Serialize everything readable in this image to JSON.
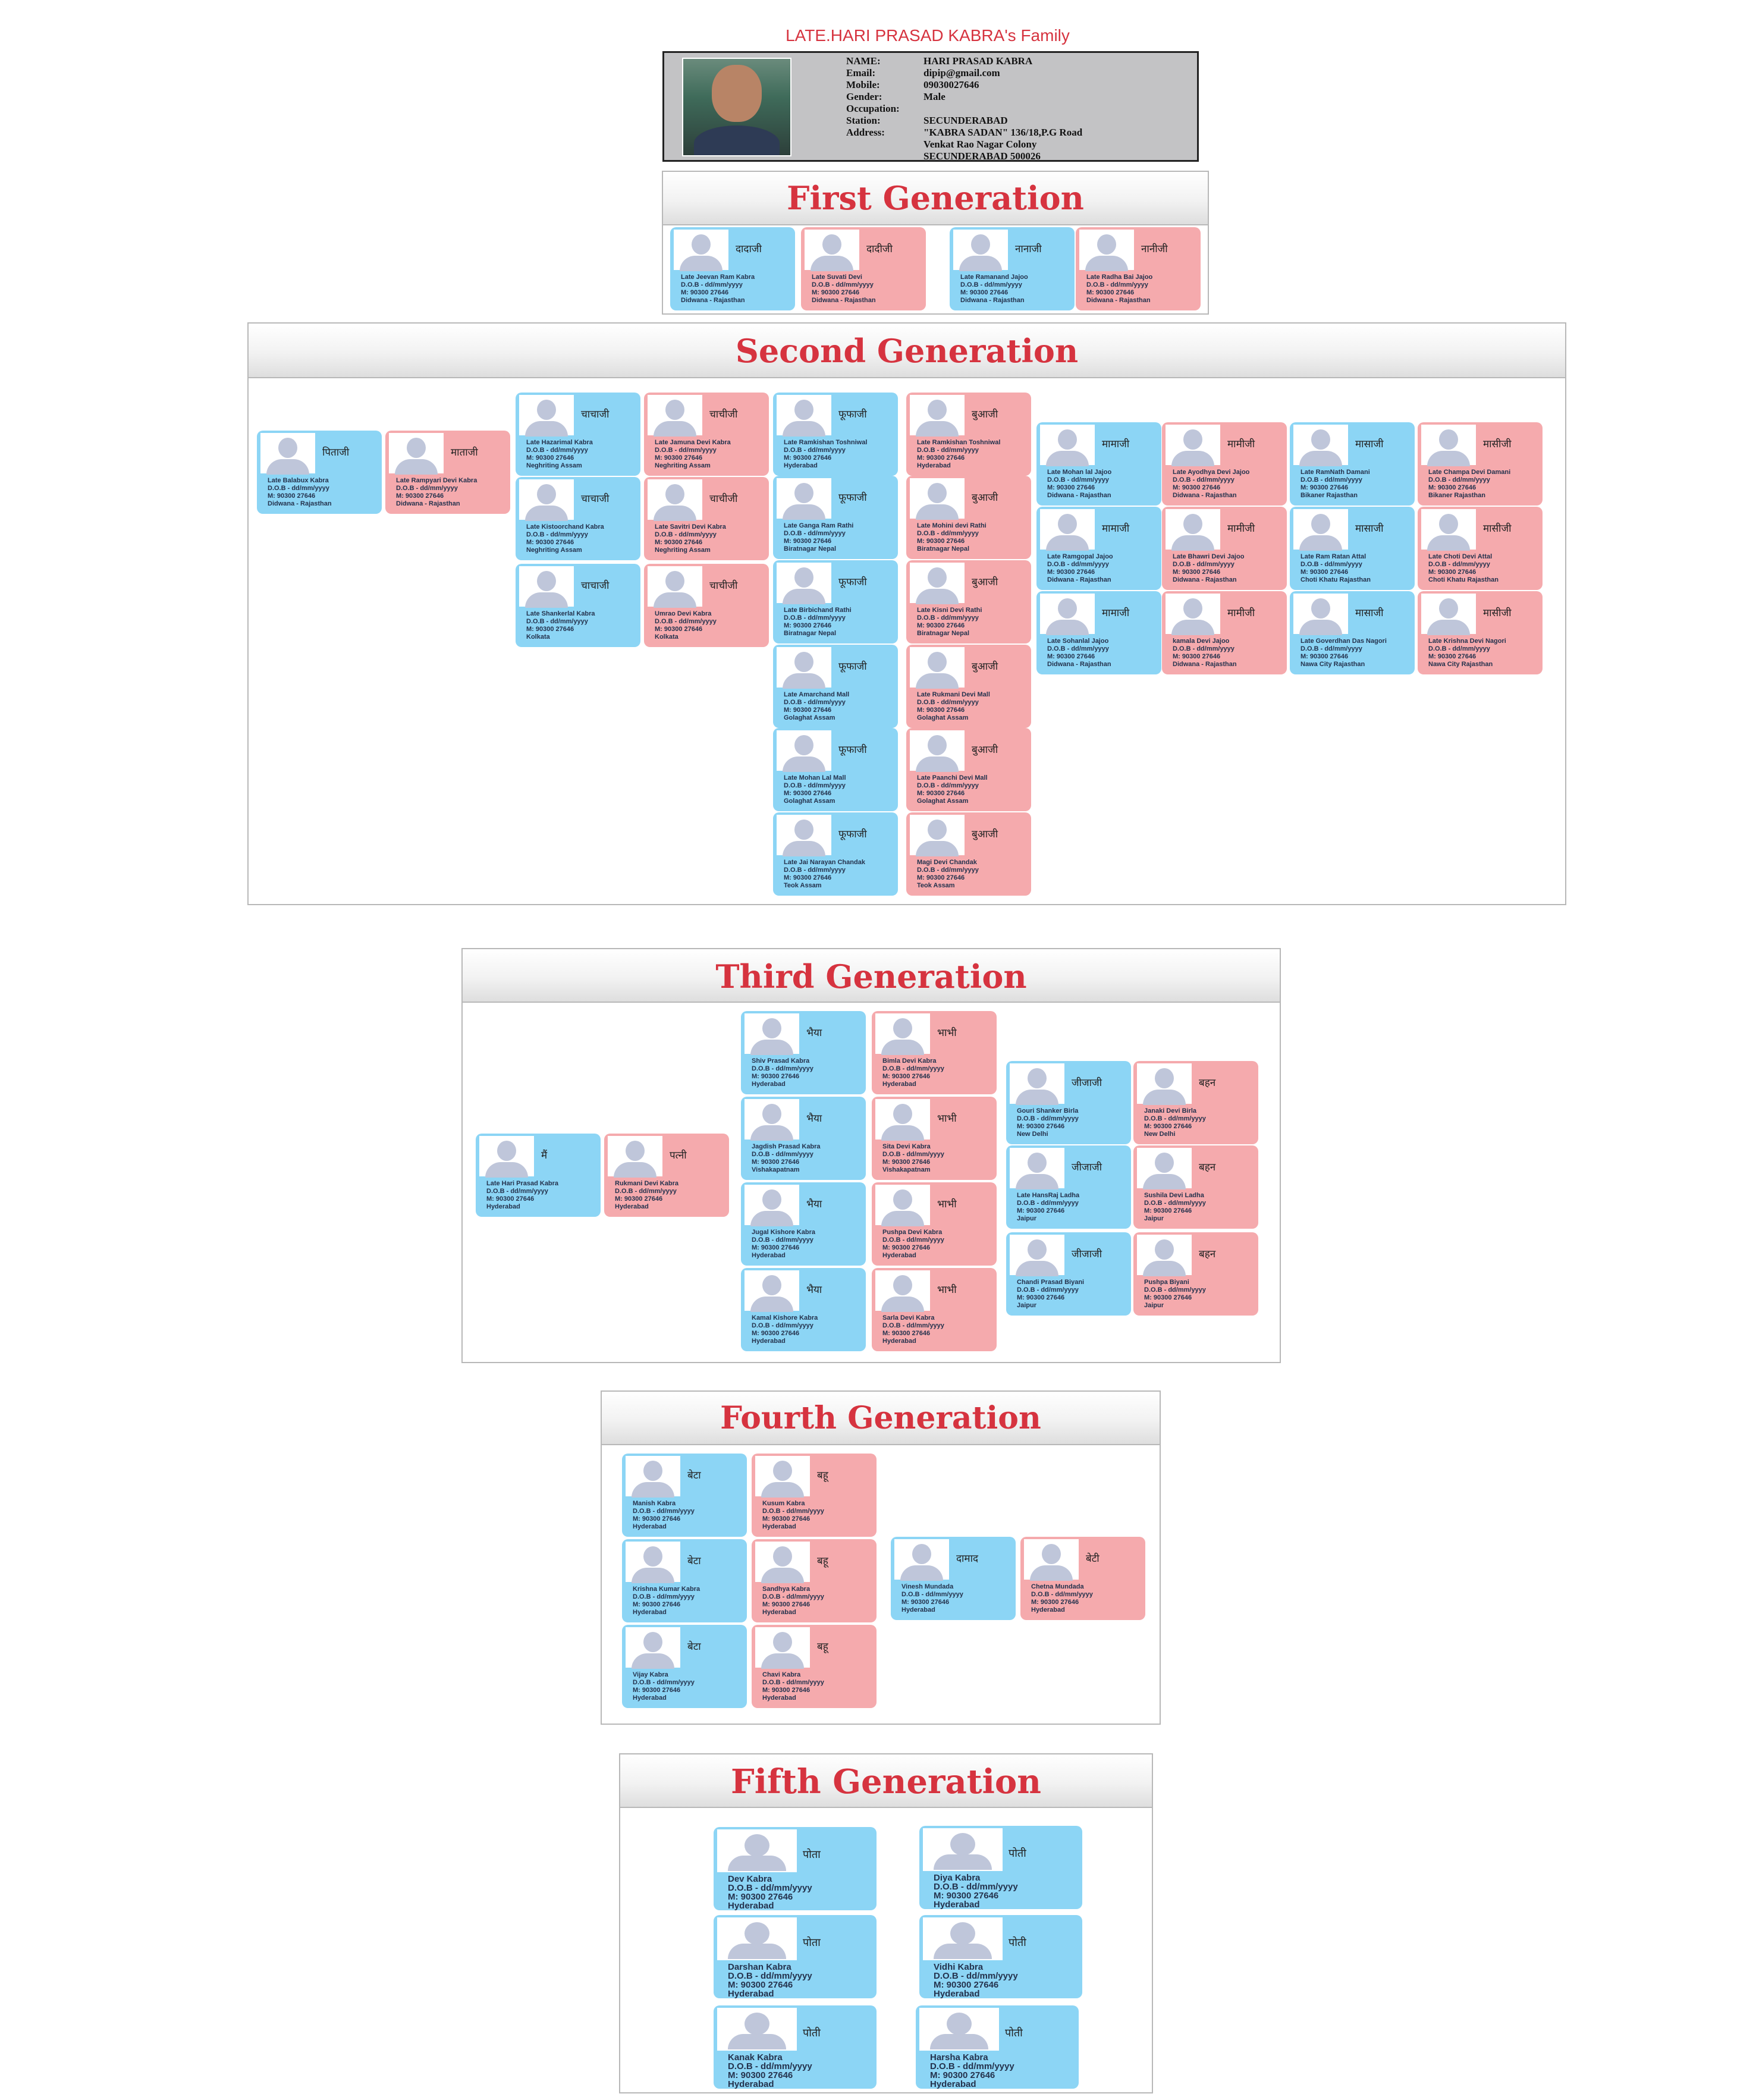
{
  "title": "LATE.HARI PRASAD KABRA's Family",
  "profile": {
    "fields": [
      {
        "label": "NAME:",
        "value": "HARI PRASAD KABRA"
      },
      {
        "label": "Email:",
        "value": "dipip@gmail.com"
      },
      {
        "label": "Mobile:",
        "value": "09030027646"
      },
      {
        "label": "Gender:",
        "value": "Male"
      },
      {
        "label": "Occupation:",
        "value": ""
      },
      {
        "label": "Station:",
        "value": "SECUNDERABAD"
      },
      {
        "label": "Address:",
        "value": "\"KABRA SADAN\" 136/18,P.G Road"
      },
      {
        "label": "",
        "value": "Venkat Rao Nagar Colony"
      },
      {
        "label": "",
        "value": "SECUNDERABAD 500026"
      }
    ]
  },
  "colors": {
    "male": "#8cd5f5",
    "female": "#f5aaad",
    "heading": "#d6333f"
  },
  "generations": [
    {
      "title": "First Generation",
      "members": [
        {
          "rel": "दादाजी",
          "name": "Late Jeevan Ram Kabra",
          "dob": "D.O.B - dd/mm/yyyy",
          "mobile": "M: 90300 27646",
          "place": "Didwana - Rajasthan",
          "gender": "m"
        },
        {
          "rel": "दादीजी",
          "name": "Late Suvati Devi",
          "dob": "D.O.B - dd/mm/yyyy",
          "mobile": "M: 90300 27646",
          "place": "Didwana - Rajasthan",
          "gender": "f"
        },
        {
          "rel": "नानाजी",
          "name": "Late Ramanand Jajoo",
          "dob": "D.O.B - dd/mm/yyyy",
          "mobile": "M: 90300 27646",
          "place": "Didwana - Rajasthan",
          "gender": "m"
        },
        {
          "rel": "नानीजी",
          "name": "Late Radha Bai Jajoo",
          "dob": "D.O.B - dd/mm/yyyy",
          "mobile": "M: 90300 27646",
          "place": "Didwana - Rajasthan",
          "gender": "f"
        }
      ]
    },
    {
      "title": "Second Generation",
      "members": [
        {
          "rel": "पिताजी",
          "name": "Late Balabux Kabra",
          "dob": "D.O.B - dd/mm/yyyy",
          "mobile": "M: 90300 27646",
          "place": "Didwana - Rajasthan",
          "gender": "m"
        },
        {
          "rel": "माताजी",
          "name": "Late Rampyari Devi Kabra",
          "dob": "D.O.B - dd/mm/yyyy",
          "mobile": "M: 90300 27646",
          "place": "Didwana - Rajasthan",
          "gender": "f"
        },
        {
          "rel": "चाचाजी",
          "name": "Late Hazarimal Kabra",
          "dob": "D.O.B - dd/mm/yyyy",
          "mobile": "M: 90300 27646",
          "place": "Neghriting Assam",
          "gender": "m"
        },
        {
          "rel": "चाचीजी",
          "name": "Late Jamuna Devi Kabra",
          "dob": "D.O.B - dd/mm/yyyy",
          "mobile": "M: 90300 27646",
          "place": "Neghriting Assam",
          "gender": "f"
        },
        {
          "rel": "चाचाजी",
          "name": "Late Kistoorchand Kabra",
          "dob": "D.O.B - dd/mm/yyyy",
          "mobile": "M: 90300 27646",
          "place": "Neghriting Assam",
          "gender": "m"
        },
        {
          "rel": "चाचीजी",
          "name": "Late Savitri Devi Kabra",
          "dob": "D.O.B - dd/mm/yyyy",
          "mobile": "M: 90300 27646",
          "place": "Neghriting Assam",
          "gender": "f"
        },
        {
          "rel": "चाचाजी",
          "name": "Late Shankerlal Kabra",
          "dob": "D.O.B - dd/mm/yyyy",
          "mobile": "M: 90300 27646",
          "place": "Kolkata",
          "gender": "m"
        },
        {
          "rel": "चाचीजी",
          "name": "Umrao Devi Kabra",
          "dob": "D.O.B - dd/mm/yyyy",
          "mobile": "M: 90300 27646",
          "place": "Kolkata",
          "gender": "f"
        },
        {
          "rel": "फूफाजी",
          "name": "Late Ramkishan Toshniwal",
          "dob": "D.O.B - dd/mm/yyyy",
          "mobile": "M: 90300 27646",
          "place": "Hyderabad",
          "gender": "m"
        },
        {
          "rel": "बुआजी",
          "name": "Late Ramkishan Toshniwal",
          "dob": "D.O.B - dd/mm/yyyy",
          "mobile": "M: 90300 27646",
          "place": "Hyderabad",
          "gender": "f"
        },
        {
          "rel": "फूफाजी",
          "name": "Late Ganga Ram Rathi",
          "dob": "D.O.B - dd/mm/yyyy",
          "mobile": "M: 90300 27646",
          "place": "Biratnagar Nepal",
          "gender": "m"
        },
        {
          "rel": "बुआजी",
          "name": "Late Mohini devi Rathi",
          "dob": "D.O.B - dd/mm/yyyy",
          "mobile": "M: 90300 27646",
          "place": "Biratnagar Nepal",
          "gender": "f"
        },
        {
          "rel": "फूफाजी",
          "name": "Late Birbichand Rathi",
          "dob": "D.O.B - dd/mm/yyyy",
          "mobile": "M: 90300 27646",
          "place": "Biratnagar Nepal",
          "gender": "m"
        },
        {
          "rel": "बुआजी",
          "name": "Late Kisni Devi Rathi",
          "dob": "D.O.B - dd/mm/yyyy",
          "mobile": "M: 90300 27646",
          "place": "Biratnagar Nepal",
          "gender": "f"
        },
        {
          "rel": "फूफाजी",
          "name": "Late Amarchand Mall",
          "dob": "D.O.B - dd/mm/yyyy",
          "mobile": "M: 90300 27646",
          "place": "Golaghat Assam",
          "gender": "m"
        },
        {
          "rel": "बुआजी",
          "name": "Late Rukmani Devi Mall",
          "dob": "D.O.B - dd/mm/yyyy",
          "mobile": "M: 90300 27646",
          "place": "Golaghat Assam",
          "gender": "f"
        },
        {
          "rel": "फूफाजी",
          "name": "Late Mohan Lal Mall",
          "dob": "D.O.B - dd/mm/yyyy",
          "mobile": "M: 90300 27646",
          "place": "Golaghat Assam",
          "gender": "m"
        },
        {
          "rel": "बुआजी",
          "name": "Late Paanchi Devi Mall",
          "dob": "D.O.B - dd/mm/yyyy",
          "mobile": "M: 90300 27646",
          "place": "Golaghat Assam",
          "gender": "f"
        },
        {
          "rel": "फूफाजी",
          "name": "Late Jai Narayan Chandak",
          "dob": "D.O.B - dd/mm/yyyy",
          "mobile": "M: 90300 27646",
          "place": "Teok Assam",
          "gender": "m"
        },
        {
          "rel": "बुआजी",
          "name": "Magi Devi Chandak",
          "dob": "D.O.B - dd/mm/yyyy",
          "mobile": "M: 90300 27646",
          "place": "Teok Assam",
          "gender": "f"
        },
        {
          "rel": "मामाजी",
          "name": "Late Mohan lal Jajoo",
          "dob": "D.O.B - dd/mm/yyyy",
          "mobile": "M: 90300 27646",
          "place": "Didwana - Rajasthan",
          "gender": "m"
        },
        {
          "rel": "मामीजी",
          "name": "Late Ayodhya Devi Jajoo",
          "dob": "D.O.B - dd/mm/yyyy",
          "mobile": "M: 90300 27646",
          "place": "Didwana - Rajasthan",
          "gender": "f"
        },
        {
          "rel": "मासाजी",
          "name": "Late RamNath Damani",
          "dob": "D.O.B - dd/mm/yyyy",
          "mobile": "M: 90300 27646",
          "place": "Bikaner Rajasthan",
          "gender": "m"
        },
        {
          "rel": "मासीजी",
          "name": "Late Champa Devi Damani",
          "dob": "D.O.B - dd/mm/yyyy",
          "mobile": "M: 90300 27646",
          "place": "Bikaner Rajasthan",
          "gender": "f"
        },
        {
          "rel": "मामाजी",
          "name": "Late Ramgopal Jajoo",
          "dob": "D.O.B - dd/mm/yyyy",
          "mobile": "M: 90300 27646",
          "place": "Didwana - Rajasthan",
          "gender": "m"
        },
        {
          "rel": "मामीजी",
          "name": "Late Bhawri Devi Jajoo",
          "dob": "D.O.B - dd/mm/yyyy",
          "mobile": "M: 90300 27646",
          "place": "Didwana - Rajasthan",
          "gender": "f"
        },
        {
          "rel": "मासाजी",
          "name": "Late Ram Ratan Attal",
          "dob": "D.O.B - dd/mm/yyyy",
          "mobile": "M: 90300 27646",
          "place": "Choti Khatu Rajasthan",
          "gender": "m"
        },
        {
          "rel": "मासीजी",
          "name": "Late Choti Devi Attal",
          "dob": "D.O.B - dd/mm/yyyy",
          "mobile": "M: 90300 27646",
          "place": "Choti Khatu Rajasthan",
          "gender": "f"
        },
        {
          "rel": "मामाजी",
          "name": "Late Sohanlal Jajoo",
          "dob": "D.O.B - dd/mm/yyyy",
          "mobile": "M: 90300 27646",
          "place": "Didwana - Rajasthan",
          "gender": "m"
        },
        {
          "rel": "मामीजी",
          "name": "kamala Devi Jajoo",
          "dob": "D.O.B - dd/mm/yyyy",
          "mobile": "M: 90300 27646",
          "place": "Didwana - Rajasthan",
          "gender": "f"
        },
        {
          "rel": "मासाजी",
          "name": "Late Goverdhan Das Nagori",
          "dob": "D.O.B - dd/mm/yyyy",
          "mobile": "M: 90300 27646",
          "place": "Nawa City Rajasthan",
          "gender": "m"
        },
        {
          "rel": "मासीजी",
          "name": "Late Krishna Devi Nagori",
          "dob": "D.O.B - dd/mm/yyyy",
          "mobile": "M: 90300 27646",
          "place": "Nawa City Rajasthan",
          "gender": "f"
        }
      ]
    },
    {
      "title": "Third Generation",
      "members": [
        {
          "rel": "मैं",
          "name": "Late Hari Prasad Kabra",
          "dob": "D.O.B - dd/mm/yyyy",
          "mobile": "M: 90300 27646",
          "place": "Hyderabad",
          "gender": "m"
        },
        {
          "rel": "पत्नी",
          "name": "Rukmani Devi Kabra",
          "dob": "D.O.B - dd/mm/yyyy",
          "mobile": "M: 90300 27646",
          "place": "Hyderabad",
          "gender": "f"
        },
        {
          "rel": "भैया",
          "name": "Shiv Prasad Kabra",
          "dob": "D.O.B - dd/mm/yyyy",
          "mobile": "M: 90300 27646",
          "place": "Hyderabad",
          "gender": "m"
        },
        {
          "rel": "भाभी",
          "name": "Bimla Devi Kabra",
          "dob": "D.O.B - dd/mm/yyyy",
          "mobile": "M: 90300 27646",
          "place": "Hyderabad",
          "gender": "f"
        },
        {
          "rel": "भैया",
          "name": "Jagdish Prasad Kabra",
          "dob": "D.O.B - dd/mm/yyyy",
          "mobile": "M: 90300 27646",
          "place": "Vishakapatnam",
          "gender": "m"
        },
        {
          "rel": "भाभी",
          "name": "Sita Devi Kabra",
          "dob": "D.O.B - dd/mm/yyyy",
          "mobile": "M: 90300 27646",
          "place": "Vishakapatnam",
          "gender": "f"
        },
        {
          "rel": "भैया",
          "name": "Jugal Kishore Kabra",
          "dob": "D.O.B - dd/mm/yyyy",
          "mobile": "M: 90300 27646",
          "place": "Hyderabad",
          "gender": "m"
        },
        {
          "rel": "भाभी",
          "name": "Pushpa Devi Kabra",
          "dob": "D.O.B - dd/mm/yyyy",
          "mobile": "M: 90300 27646",
          "place": "Hyderabad",
          "gender": "f"
        },
        {
          "rel": "भैया",
          "name": "Kamal Kishore Kabra",
          "dob": "D.O.B - dd/mm/yyyy",
          "mobile": "M: 90300 27646",
          "place": "Hyderabad",
          "gender": "m"
        },
        {
          "rel": "भाभी",
          "name": "Sarla Devi Kabra",
          "dob": "D.O.B - dd/mm/yyyy",
          "mobile": "M: 90300 27646",
          "place": "Hyderabad",
          "gender": "f"
        },
        {
          "rel": "जीजाजी",
          "name": "Gouri Shanker Birla",
          "dob": "D.O.B - dd/mm/yyyy",
          "mobile": "M: 90300 27646",
          "place": "New Delhi",
          "gender": "m"
        },
        {
          "rel": "बहन",
          "name": "Janaki Devi Birla",
          "dob": "D.O.B - dd/mm/yyyy",
          "mobile": "M: 90300 27646",
          "place": "New Delhi",
          "gender": "f"
        },
        {
          "rel": "जीजाजी",
          "name": "Late HansRaj Ladha",
          "dob": "D.O.B - dd/mm/yyyy",
          "mobile": "M: 90300 27646",
          "place": "Jaipur",
          "gender": "m"
        },
        {
          "rel": "बहन",
          "name": "Sushila Devi Ladha",
          "dob": "D.O.B - dd/mm/yyyy",
          "mobile": "M: 90300 27646",
          "place": "Jaipur",
          "gender": "f"
        },
        {
          "rel": "जीजाजी",
          "name": "Chandi Prasad Biyani",
          "dob": "D.O.B - dd/mm/yyyy",
          "mobile": "M: 90300 27646",
          "place": "Jaipur",
          "gender": "m"
        },
        {
          "rel": "बहन",
          "name": "Pushpa Biyani",
          "dob": "D.O.B - dd/mm/yyyy",
          "mobile": "M: 90300 27646",
          "place": "Jaipur",
          "gender": "f"
        }
      ]
    },
    {
      "title": "Fourth  Generation",
      "members": [
        {
          "rel": "बेटा",
          "name": "Manish Kabra",
          "dob": "D.O.B - dd/mm/yyyy",
          "mobile": "M: 90300 27646",
          "place": "Hyderabad",
          "gender": "m"
        },
        {
          "rel": "बहू",
          "name": "Kusum Kabra",
          "dob": "D.O.B - dd/mm/yyyy",
          "mobile": "M: 90300 27646",
          "place": "Hyderabad",
          "gender": "f"
        },
        {
          "rel": "बेटा",
          "name": "Krishna Kumar Kabra",
          "dob": "D.O.B - dd/mm/yyyy",
          "mobile": "M: 90300 27646",
          "place": "Hyderabad",
          "gender": "m"
        },
        {
          "rel": "बहू",
          "name": "Sandhya Kabra",
          "dob": "D.O.B - dd/mm/yyyy",
          "mobile": "M: 90300 27646",
          "place": "Hyderabad",
          "gender": "f"
        },
        {
          "rel": "बेटा",
          "name": "Vijay Kabra",
          "dob": "D.O.B - dd/mm/yyyy",
          "mobile": "M: 90300 27646",
          "place": "Hyderabad",
          "gender": "m"
        },
        {
          "rel": "बहू",
          "name": "Chavi Kabra",
          "dob": "D.O.B - dd/mm/yyyy",
          "mobile": "M: 90300 27646",
          "place": "Hyderabad",
          "gender": "f"
        },
        {
          "rel": "दामाद",
          "name": "Vinesh Mundada",
          "dob": "D.O.B - dd/mm/yyyy",
          "mobile": "M: 90300 27646",
          "place": "Hyderabad",
          "gender": "m"
        },
        {
          "rel": "बेटी",
          "name": "Chetna Mundada",
          "dob": "D.O.B - dd/mm/yyyy",
          "mobile": "M: 90300 27646",
          "place": "Hyderabad",
          "gender": "f"
        }
      ]
    },
    {
      "title": "Fifth  Generation",
      "members": [
        {
          "rel": "पोता",
          "name": "Dev Kabra",
          "dob": "D.O.B - dd/mm/yyyy",
          "mobile": "M: 90300 27646",
          "place": "Hyderabad",
          "gender": "m"
        },
        {
          "rel": "पोती",
          "name": "Diya Kabra",
          "dob": "D.O.B - dd/mm/yyyy",
          "mobile": "M: 90300 27646",
          "place": "Hyderabad",
          "gender": "m"
        },
        {
          "rel": "पोता",
          "name": "Darshan Kabra",
          "dob": "D.O.B - dd/mm/yyyy",
          "mobile": "M: 90300 27646",
          "place": "Hyderabad",
          "gender": "m"
        },
        {
          "rel": "पोती",
          "name": "Vidhi Kabra",
          "dob": "D.O.B - dd/mm/yyyy",
          "mobile": "M: 90300 27646",
          "place": "Hyderabad",
          "gender": "m"
        },
        {
          "rel": "पोती",
          "name": "Kanak Kabra",
          "dob": "D.O.B - dd/mm/yyyy",
          "mobile": "M: 90300 27646",
          "place": "Hyderabad",
          "gender": "m"
        },
        {
          "rel": "पोती",
          "name": "Harsha Kabra",
          "dob": "D.O.B - dd/mm/yyyy",
          "mobile": "M: 90300 27646",
          "place": "Hyderabad",
          "gender": "m"
        }
      ]
    }
  ]
}
